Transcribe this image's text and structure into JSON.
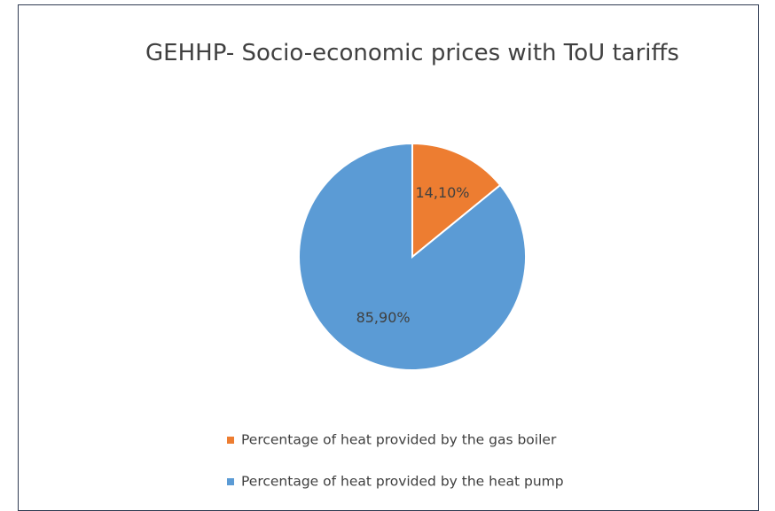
{
  "chart_data": {
    "type": "pie",
    "title": "GEHHP- Socio-economic prices with ToU tariffs",
    "categories": [
      "Percentage of heat provided by the gas boiler",
      "Percentage of heat provided by the heat pump"
    ],
    "values": [
      14.1,
      85.9
    ],
    "value_labels": [
      "14,10%",
      "85,90%"
    ],
    "colors": [
      "#ed7d31",
      "#5b9bd5"
    ],
    "legend": "bottom"
  }
}
